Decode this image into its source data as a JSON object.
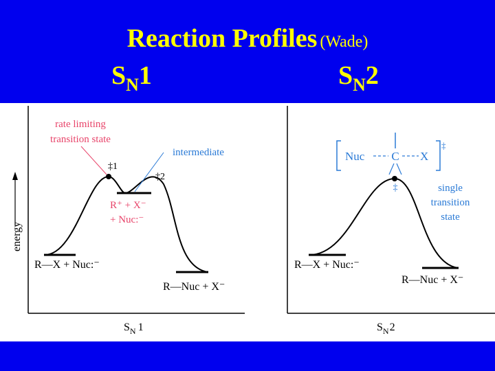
{
  "slide": {
    "title_main": "Reaction Profiles",
    "title_sub": "(Wade)",
    "heading_left_base": "S",
    "heading_left_sub": "N",
    "heading_left_num": "1",
    "heading_right_base": "S",
    "heading_right_sub": "N",
    "heading_right_num": "2"
  },
  "colors": {
    "background": "#0000ee",
    "title": "#ffff00",
    "callout": "#e8446a",
    "annotation": "#2a7ad6",
    "curve": "#000000"
  },
  "sn1": {
    "rate_limiting_line1": "rate limiting",
    "rate_limiting_line2": "transition state",
    "intermediate": "intermediate",
    "ts1_mark": "‡1",
    "ts2_mark": "‡2",
    "inter_line1": "R⁺ + X⁻",
    "inter_line2": "+ Nuc:⁻",
    "reactants": "R—X + Nuc:⁻",
    "products": "R—Nuc + X⁻",
    "axis_y": "energy",
    "axis_x_base": "S",
    "axis_x_sub": "N",
    "axis_x_num": "1"
  },
  "sn2": {
    "ts_nuc": "Nuc",
    "ts_c": "C",
    "ts_x": "X",
    "ts_dagger": "‡",
    "peak_mark": "‡",
    "single_line1": "single",
    "single_line2": "transition",
    "single_line3": "state",
    "reactants": "R—X + Nuc:⁻",
    "products": "R—Nuc + X⁻",
    "axis_x_base": "S",
    "axis_x_sub": "N",
    "axis_x_num": "2"
  }
}
